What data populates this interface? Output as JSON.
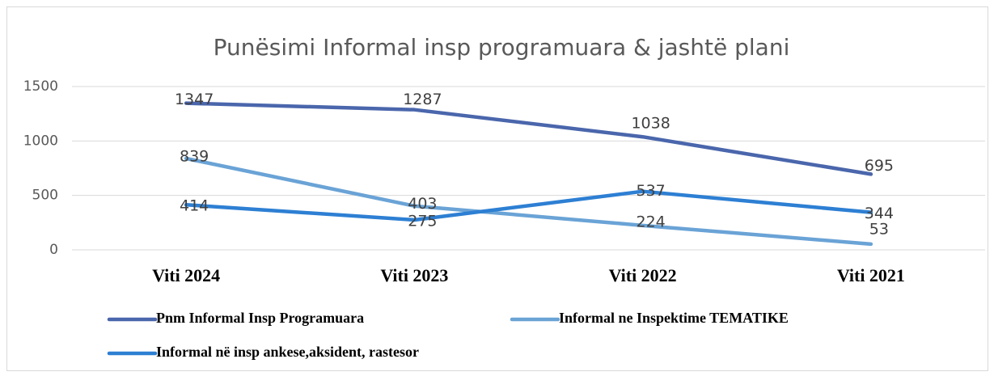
{
  "chart_data": {
    "type": "line",
    "title": "Punësimi Informal insp programuara & jashtë plani",
    "categories": [
      "Viti 2024",
      "Viti 2023",
      "Viti 2022",
      "Viti 2021"
    ],
    "series": [
      {
        "name": "Pnm Informal Insp Programuara",
        "color": "#4a66ac",
        "values": [
          1347,
          1287,
          1038,
          695
        ]
      },
      {
        "name": "Informal ne Inspektime TEMATIKE",
        "color": "#6aa3d6",
        "values": [
          839,
          403,
          224,
          53
        ]
      },
      {
        "name": "Informal në insp ankese,aksident, rastesor",
        "color": "#2d7fd3",
        "values": [
          414,
          275,
          537,
          344
        ]
      }
    ],
    "ylim": [
      0,
      1500
    ],
    "yticks": [
      0,
      500,
      1000,
      1500
    ],
    "grid": true,
    "legend": "bottom"
  }
}
